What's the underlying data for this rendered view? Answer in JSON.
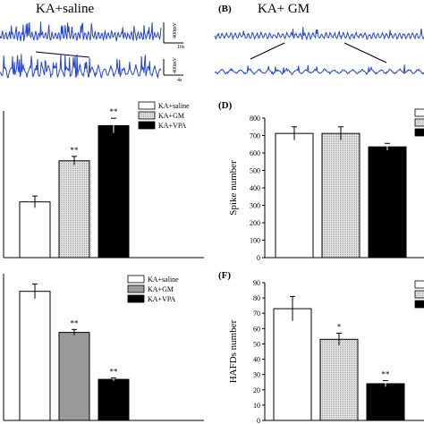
{
  "traces": {
    "a": {
      "title": "KA+saline",
      "scale_v": "400mV",
      "scale_t1": "10s",
      "scale_t2": "4s"
    },
    "b": {
      "label": "(B)",
      "title": "KA+ GM"
    }
  },
  "colors": {
    "trace": "#2244dd",
    "bar_saline": "#ffffff",
    "bar_gm_light": "#e6e6e6",
    "bar_gm_dark": "#9a9a9a",
    "bar_vpa": "#000000"
  },
  "chart_data": [
    {
      "panel": "C",
      "type": "bar",
      "categories": [
        "KA+saline",
        "KA+GM",
        "KA+VPA"
      ],
      "values": [
        38,
        66,
        90
      ],
      "errors": [
        4,
        3,
        5
      ],
      "significance": [
        "",
        "**",
        "**"
      ],
      "legend": [
        "KA+saline",
        "KA+GM",
        "KA+VPA"
      ],
      "ylim": [
        0,
        100
      ],
      "visible_ticks": false
    },
    {
      "panel": "D",
      "label": "(D)",
      "type": "bar",
      "categories": [
        "KA+saline",
        "KA+GM",
        "KA+VPA"
      ],
      "values": [
        712,
        712,
        635
      ],
      "errors": [
        38,
        38,
        20
      ],
      "significance": [
        "",
        "",
        ""
      ],
      "ylabel": "Spike number",
      "ylim": [
        0,
        800
      ],
      "yticks": [
        "0",
        "100",
        "200",
        "300",
        "400",
        "500",
        "600",
        "700",
        "800"
      ]
    },
    {
      "panel": "E",
      "type": "bar",
      "categories": [
        "KA+saline",
        "KA+GM",
        "KA+VPA"
      ],
      "values": [
        88,
        60,
        28
      ],
      "errors": [
        5,
        2,
        1
      ],
      "significance": [
        "",
        "**",
        "**"
      ],
      "legend": [
        "KA+saline",
        "KA+GM",
        "KA+VPA"
      ],
      "ylim": [
        0,
        100
      ],
      "visible_ticks": false
    },
    {
      "panel": "F",
      "label": "(F)",
      "type": "bar",
      "categories": [
        "KA+saline",
        "KA+GM",
        "KA+VPA"
      ],
      "values": [
        73,
        53,
        24
      ],
      "errors": [
        8,
        4,
        2
      ],
      "significance": [
        "",
        "*",
        "**"
      ],
      "ylabel": "HAFDs number",
      "ylim": [
        0,
        90
      ],
      "yticks": [
        "0",
        "10",
        "20",
        "30",
        "40",
        "50",
        "60",
        "70",
        "80",
        "90"
      ]
    }
  ]
}
